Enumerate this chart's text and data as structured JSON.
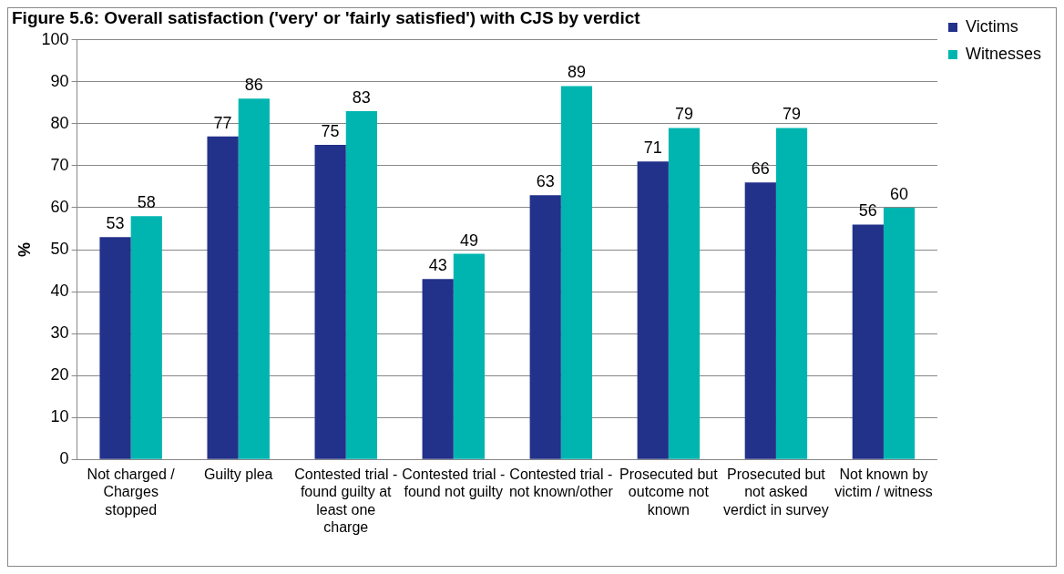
{
  "chart_data": {
    "type": "bar",
    "title": "Figure 5.6: Overall satisfaction ('very' or 'fairly satisfied') with CJS by verdict",
    "ylabel": "%",
    "categories": [
      "Not charged / Charges stopped",
      "Guilty plea",
      "Contested trial - found guilty at least one charge",
      "Contested trial - found not guilty",
      "Contested trial - not known/other",
      "Prosecuted but outcome not known",
      "Prosecuted but not asked verdict in survey",
      "Not known by victim / witness"
    ],
    "series": [
      {
        "name": "Victims",
        "color": "#22318a",
        "values": [
          53,
          77,
          75,
          43,
          63,
          71,
          66,
          56
        ]
      },
      {
        "name": "Witnesses",
        "color": "#00b5b0",
        "values": [
          58,
          86,
          83,
          49,
          89,
          79,
          79,
          60
        ]
      }
    ],
    "ylim": [
      0,
      100
    ],
    "yticks": [
      0,
      10,
      20,
      30,
      40,
      50,
      60,
      70,
      80,
      90,
      100
    ],
    "grid": "y",
    "legend": "top right",
    "data_labels": true
  }
}
